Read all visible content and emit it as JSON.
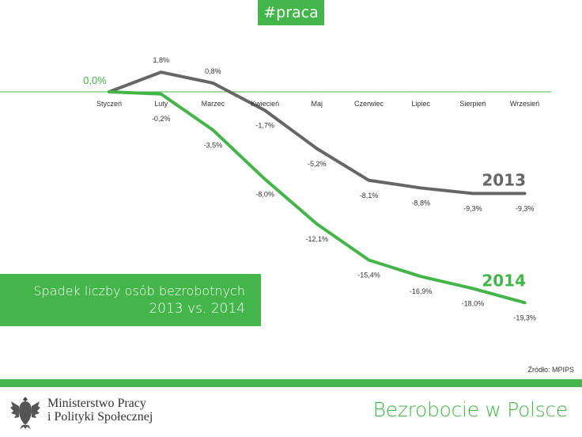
{
  "header": {
    "hashtag": "#praca"
  },
  "info_box": {
    "line1": "Spadek liczby osób bezrobotnych",
    "line2": "2013 vs. 2014"
  },
  "source": "Źródło: MPIPS",
  "footer": {
    "ministry_line1": "Ministerstwo Pracy",
    "ministry_line2": "i Polityki Społecznej",
    "title": "Bezrobocie w Polsce"
  },
  "colors": {
    "green": "#43b549",
    "gray": "#666666"
  },
  "chart_data": {
    "type": "line",
    "categories": [
      "Styczeń",
      "Luty",
      "Marzec",
      "Kwiecień",
      "Maj",
      "Czerwiec",
      "Lipiec",
      "Sierpień",
      "Wrzesień"
    ],
    "baseline_label": "0,0%",
    "series": [
      {
        "name": "2013",
        "color": "#666666",
        "values": [
          0,
          1.8,
          0.8,
          -1.7,
          -5.2,
          -8.1,
          -8.8,
          -9.3,
          -9.3
        ],
        "labels": [
          "",
          "1,8%",
          "0,8%",
          "-1,7%",
          "-5,2%",
          "-8,1%",
          "-8,8%",
          "-9,3%",
          "-9,3%"
        ]
      },
      {
        "name": "2014",
        "color": "#43b549",
        "values": [
          0,
          -0.2,
          -3.5,
          -8.0,
          -12.1,
          -15.4,
          -16.9,
          -18.0,
          -19.3
        ],
        "labels": [
          "",
          "-0,2%",
          "-3,5%",
          "-8,0%",
          "-12,1%",
          "-15,4%",
          "-16,9%",
          "-18,0%",
          "-19,3%"
        ]
      }
    ]
  }
}
